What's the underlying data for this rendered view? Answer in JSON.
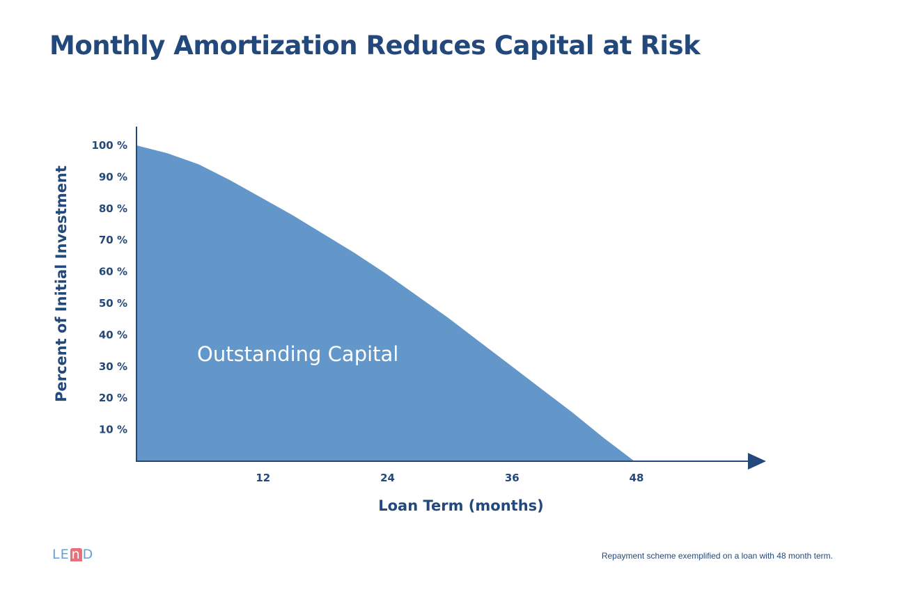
{
  "slide": {
    "title": "Monthly Amortization Reduces Capital at Risk",
    "footnote": "Repayment scheme exemplified on a loan with 48 month term.",
    "logo": {
      "parts": [
        "LE",
        "n",
        "D"
      ]
    }
  },
  "colors": {
    "title": "#23497c",
    "axis": "#23497c",
    "area_fill": "#6396c9",
    "area_label": "#ffffff",
    "logo_text": "#6b9ed4",
    "logo_accent": "#e8707a",
    "footnote": "#23497c"
  },
  "chart_data": {
    "type": "area",
    "title": "",
    "xlabel": "Loan Term (months)",
    "ylabel": "Percent of Initial Investment",
    "x_ticks": [
      12,
      24,
      36,
      48
    ],
    "y_ticks": [
      10,
      20,
      30,
      40,
      50,
      60,
      70,
      80,
      90,
      100
    ],
    "y_tick_suffix": " %",
    "xlim": [
      0,
      60
    ],
    "ylim": [
      0,
      105
    ],
    "grid": false,
    "legend": "none",
    "series": [
      {
        "name": "Outstanding Capital",
        "x": [
          0,
          3,
          6,
          9,
          12,
          15,
          18,
          21,
          24,
          27,
          30,
          33,
          36,
          39,
          42,
          45,
          48
        ],
        "y": [
          100,
          97.5,
          94,
          89,
          83.5,
          78,
          72,
          66,
          59.5,
          52.5,
          45.5,
          38,
          30.5,
          23,
          15.5,
          7.5,
          0
        ]
      }
    ]
  }
}
